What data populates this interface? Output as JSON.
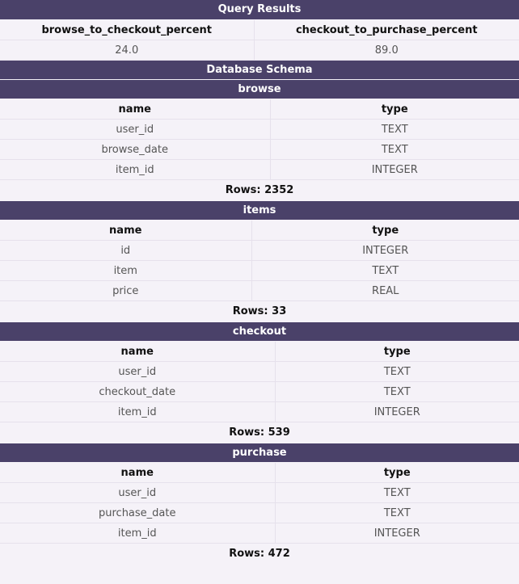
{
  "query_results": {
    "title": "Query Results",
    "columns": [
      "browse_to_checkout_percent",
      "checkout_to_purchase_percent"
    ],
    "rows": [
      [
        "24.0",
        "89.0"
      ]
    ]
  },
  "schema": {
    "title": "Database Schema",
    "tables": [
      {
        "name": "browse",
        "headers": [
          "name",
          "type"
        ],
        "columns": [
          [
            "user_id",
            "TEXT"
          ],
          [
            "browse_date",
            "TEXT"
          ],
          [
            "item_id",
            "INTEGER"
          ]
        ],
        "rows_label": "Rows: 2352"
      },
      {
        "name": "items",
        "headers": [
          "name",
          "type"
        ],
        "columns": [
          [
            "id",
            "INTEGER"
          ],
          [
            "item",
            "TEXT"
          ],
          [
            "price",
            "REAL"
          ]
        ],
        "rows_label": "Rows: 33"
      },
      {
        "name": "checkout",
        "headers": [
          "name",
          "type"
        ],
        "columns": [
          [
            "user_id",
            "TEXT"
          ],
          [
            "checkout_date",
            "TEXT"
          ],
          [
            "item_id",
            "INTEGER"
          ]
        ],
        "rows_label": "Rows: 539"
      },
      {
        "name": "purchase",
        "headers": [
          "name",
          "type"
        ],
        "columns": [
          [
            "user_id",
            "TEXT"
          ],
          [
            "purchase_date",
            "TEXT"
          ],
          [
            "item_id",
            "INTEGER"
          ]
        ],
        "rows_label": "Rows: 472"
      }
    ]
  }
}
